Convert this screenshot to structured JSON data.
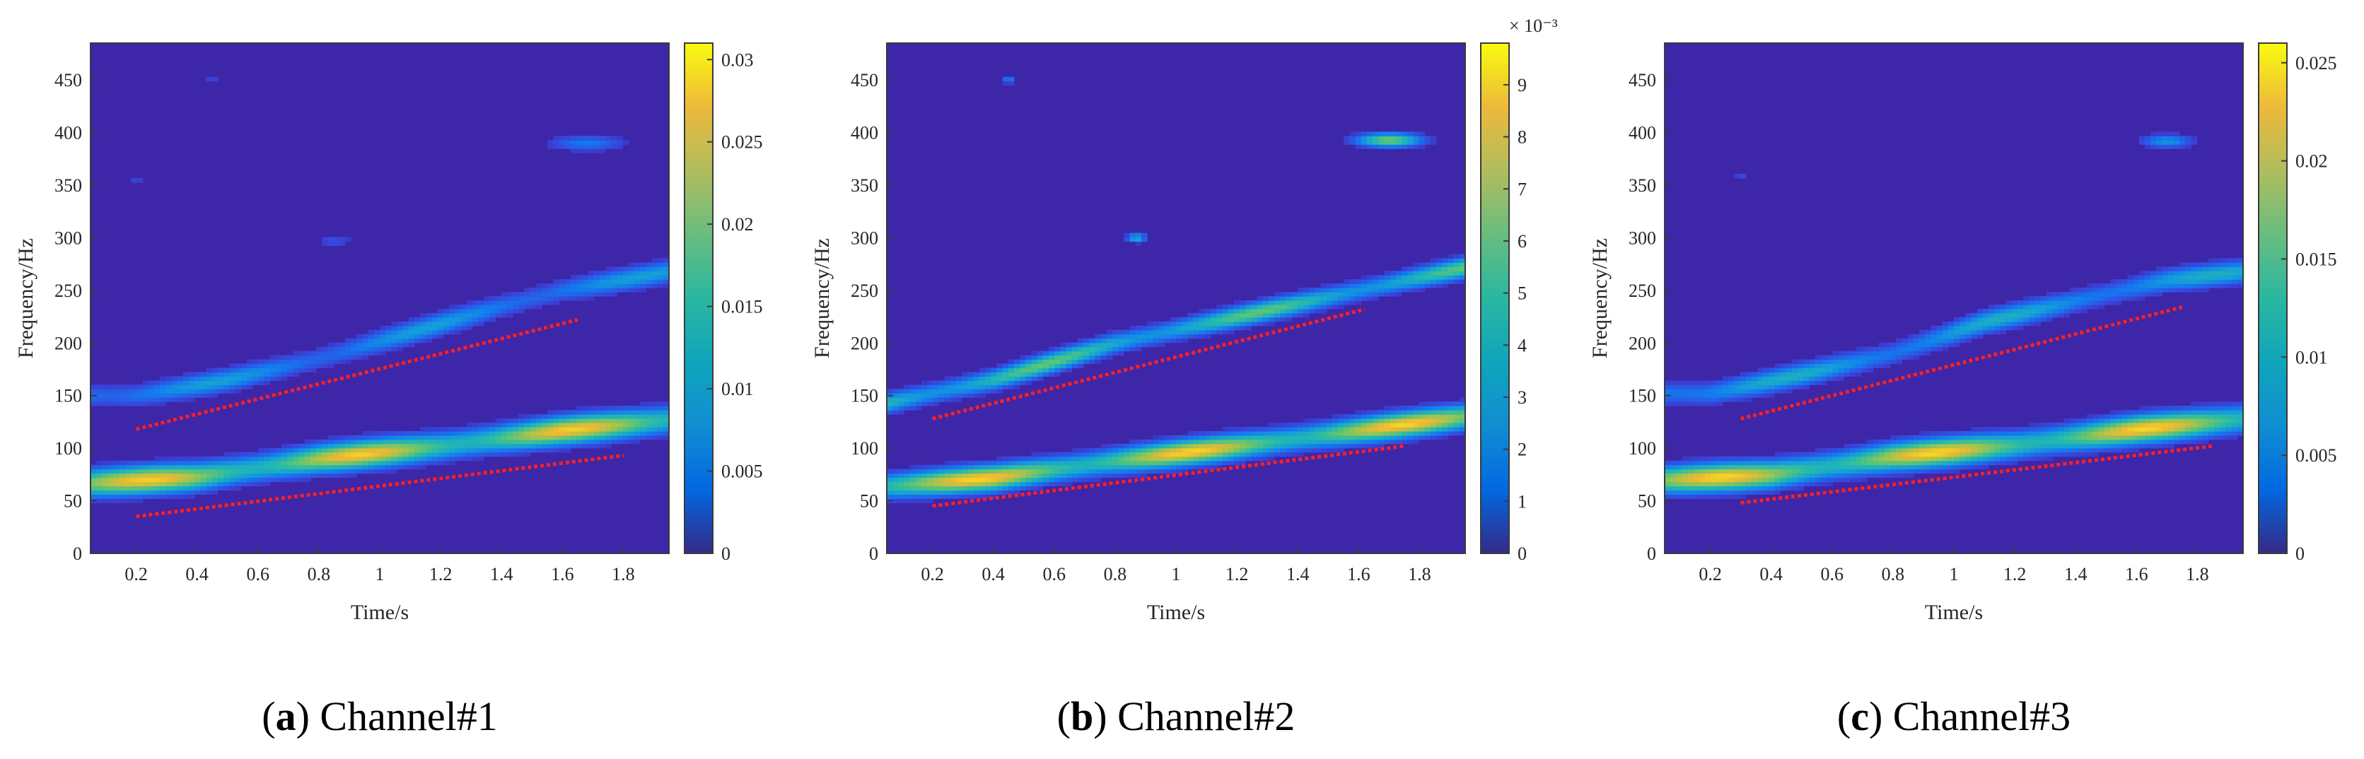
{
  "panels": [
    {
      "type": "heatmap",
      "caption_letter": "a",
      "caption_rest": "Channel#1",
      "xlabel": "Time/s",
      "ylabel": "Frequency/Hz",
      "xlim": [
        0.05,
        1.95
      ],
      "ylim": [
        0,
        485
      ],
      "xticks": [
        0.2,
        0.4,
        0.6,
        0.8,
        1,
        1.2,
        1.4,
        1.6,
        1.8
      ],
      "xtick_labels": [
        "0.2",
        "0.4",
        "0.6",
        "0.8",
        "1",
        "1.2",
        "1.4",
        "1.6",
        "1.8"
      ],
      "yticks": [
        0,
        50,
        100,
        150,
        200,
        250,
        300,
        350,
        400,
        450
      ],
      "ytick_labels": [
        "0",
        "50",
        "100",
        "150",
        "200",
        "250",
        "300",
        "350",
        "400",
        "450"
      ],
      "colorbar": {
        "range": [
          0,
          0.031
        ],
        "ticks": [
          0,
          0.005,
          0.01,
          0.015,
          0.02,
          0.025,
          0.03
        ],
        "tick_labels": [
          "0",
          "0.005",
          "0.01",
          "0.015",
          "0.02",
          "0.025",
          "0.03"
        ],
        "exponent": ""
      },
      "ridges": [
        {
          "t": [
            0.05,
            0.4,
            0.8,
            1.2,
            1.6,
            1.95
          ],
          "f": [
            67,
            73,
            90,
            102,
            117,
            127
          ],
          "peak": 0.028,
          "width": 12
        },
        {
          "t": [
            0.2,
            0.5,
            0.8,
            1.1,
            1.4,
            1.6,
            1.95
          ],
          "f": [
            150,
            165,
            185,
            210,
            235,
            250,
            268
          ],
          "peak": 0.011,
          "width": 10
        }
      ],
      "blobs": [
        {
          "t": 1.68,
          "f": 390,
          "dt": 0.12,
          "df": 7,
          "v": 0.007
        },
        {
          "t": 0.85,
          "f": 297,
          "dt": 0.06,
          "df": 5,
          "v": 0.004
        },
        {
          "t": 0.45,
          "f": 450,
          "dt": 0.04,
          "df": 4,
          "v": 0.003
        },
        {
          "t": 0.2,
          "f": 355,
          "dt": 0.03,
          "df": 4,
          "v": 0.003
        }
      ],
      "fitted_lines": [
        {
          "t": [
            0.2,
            1.65
          ],
          "f": [
            118,
            222
          ]
        },
        {
          "t": [
            0.2,
            1.8
          ],
          "f": [
            35,
            93
          ]
        }
      ]
    },
    {
      "type": "heatmap",
      "caption_letter": "b",
      "caption_rest": "Channel#2",
      "xlabel": "Time/s",
      "ylabel": "Frequency/Hz",
      "xlim": [
        0.05,
        1.95
      ],
      "ylim": [
        0,
        485
      ],
      "xticks": [
        0.2,
        0.4,
        0.6,
        0.8,
        1,
        1.2,
        1.4,
        1.6,
        1.8
      ],
      "xtick_labels": [
        "0.2",
        "0.4",
        "0.6",
        "0.8",
        "1",
        "1.2",
        "1.4",
        "1.6",
        "1.8"
      ],
      "yticks": [
        0,
        50,
        100,
        150,
        200,
        250,
        300,
        350,
        400,
        450
      ],
      "ytick_labels": [
        "0",
        "50",
        "100",
        "150",
        "200",
        "250",
        "300",
        "350",
        "400",
        "450"
      ],
      "colorbar": {
        "range": [
          0,
          9.8
        ],
        "ticks": [
          0,
          1,
          2,
          3,
          4,
          5,
          6,
          7,
          8,
          9
        ],
        "tick_labels": [
          "0",
          "1",
          "2",
          "3",
          "4",
          "5",
          "6",
          "7",
          "8",
          "9"
        ],
        "exponent": "× 10⁻³"
      },
      "ridges": [
        {
          "t": [
            0.05,
            0.4,
            0.8,
            1.2,
            1.6,
            1.95
          ],
          "f": [
            64,
            72,
            88,
            102,
            117,
            130
          ],
          "peak": 9.0,
          "width": 11
        },
        {
          "t": [
            0.05,
            0.4,
            0.8,
            1.2,
            1.6,
            1.95
          ],
          "f": [
            143,
            165,
            200,
            225,
            250,
            272
          ],
          "peak": 6.0,
          "width": 9
        }
      ],
      "blobs": [
        {
          "t": 1.7,
          "f": 393,
          "dt": 0.1,
          "df": 6,
          "v": 6.5
        },
        {
          "t": 0.87,
          "f": 300,
          "dt": 0.03,
          "df": 4,
          "v": 4.0
        },
        {
          "t": 0.45,
          "f": 450,
          "dt": 0.02,
          "df": 3,
          "v": 2.5
        }
      ],
      "fitted_lines": [
        {
          "t": [
            0.2,
            1.62
          ],
          "f": [
            128,
            232
          ]
        },
        {
          "t": [
            0.2,
            1.75
          ],
          "f": [
            45,
            102
          ]
        }
      ]
    },
    {
      "type": "heatmap",
      "caption_letter": "c",
      "caption_rest": "Channel#3",
      "xlabel": "Time/s",
      "ylabel": "Frequency/Hz",
      "xlim": [
        0.05,
        1.95
      ],
      "ylim": [
        0,
        485
      ],
      "xticks": [
        0.2,
        0.4,
        0.6,
        0.8,
        1,
        1.2,
        1.4,
        1.6,
        1.8
      ],
      "xtick_labels": [
        "0.2",
        "0.4",
        "0.6",
        "0.8",
        "1",
        "1.2",
        "1.4",
        "1.6",
        "1.8"
      ],
      "yticks": [
        0,
        50,
        100,
        150,
        200,
        250,
        300,
        350,
        400,
        450
      ],
      "ytick_labels": [
        "0",
        "50",
        "100",
        "150",
        "200",
        "250",
        "300",
        "350",
        "400",
        "450"
      ],
      "colorbar": {
        "range": [
          0,
          0.026
        ],
        "ticks": [
          0,
          0.005,
          0.01,
          0.015,
          0.02,
          0.025
        ],
        "tick_labels": [
          "0",
          "0.005",
          "0.01",
          "0.015",
          "0.02",
          "0.025"
        ],
        "exponent": ""
      },
      "ridges": [
        {
          "t": [
            0.05,
            0.4,
            0.8,
            1.2,
            1.6,
            1.95
          ],
          "f": [
            70,
            75,
            92,
            103,
            118,
            128
          ],
          "peak": 0.024,
          "width": 12
        },
        {
          "t": [
            0.2,
            0.5,
            0.8,
            1.1,
            1.4,
            1.7,
            1.95
          ],
          "f": [
            152,
            170,
            190,
            220,
            240,
            260,
            268
          ],
          "peak": 0.011,
          "width": 10
        }
      ],
      "blobs": [
        {
          "t": 1.7,
          "f": 392,
          "dt": 0.08,
          "df": 6,
          "v": 0.008
        },
        {
          "t": 0.3,
          "f": 358,
          "dt": 0.02,
          "df": 3,
          "v": 0.003
        }
      ],
      "fitted_lines": [
        {
          "t": [
            0.3,
            1.75
          ],
          "f": [
            128,
            234
          ]
        },
        {
          "t": [
            0.3,
            1.85
          ],
          "f": [
            48,
            102
          ]
        }
      ]
    }
  ],
  "chart_data": [
    {
      "type": "heatmap",
      "title": "",
      "caption": "(a) Channel#1",
      "xlabel": "Time/s",
      "ylabel": "Frequency/Hz",
      "xlim": [
        0.05,
        1.95
      ],
      "ylim": [
        0,
        485
      ],
      "colorbar_range": [
        0,
        0.031
      ],
      "series": [
        {
          "t": [
            0.05,
            0.4,
            0.8,
            1.2,
            1.6,
            1.95
          ],
          "f": [
            67,
            73,
            90,
            102,
            117,
            127
          ]
        },
        {
          "t": [
            0.2,
            0.5,
            0.8,
            1.1,
            1.4,
            1.6,
            1.95
          ],
          "f": [
            150,
            165,
            185,
            210,
            235,
            250,
            268
          ]
        }
      ],
      "fitted_lines": [
        {
          "t": [
            0.2,
            1.65
          ],
          "f": [
            118,
            222
          ]
        },
        {
          "t": [
            0.2,
            1.8
          ],
          "f": [
            35,
            93
          ]
        }
      ]
    },
    {
      "type": "heatmap",
      "title": "",
      "caption": "(b) Channel#2",
      "xlabel": "Time/s",
      "ylabel": "Frequency/Hz",
      "xlim": [
        0.05,
        1.95
      ],
      "ylim": [
        0,
        485
      ],
      "colorbar_range": [
        0,
        0.0098
      ],
      "colorbar_exponent": "× 10⁻³",
      "series": [
        {
          "t": [
            0.05,
            0.4,
            0.8,
            1.2,
            1.6,
            1.95
          ],
          "f": [
            64,
            72,
            88,
            102,
            117,
            130
          ]
        },
        {
          "t": [
            0.05,
            0.4,
            0.8,
            1.2,
            1.6,
            1.95
          ],
          "f": [
            143,
            165,
            200,
            225,
            250,
            272
          ]
        }
      ],
      "fitted_lines": [
        {
          "t": [
            0.2,
            1.62
          ],
          "f": [
            128,
            232
          ]
        },
        {
          "t": [
            0.2,
            1.75
          ],
          "f": [
            45,
            102
          ]
        }
      ]
    },
    {
      "type": "heatmap",
      "title": "",
      "caption": "(c) Channel#3",
      "xlabel": "Time/s",
      "ylabel": "Frequency/Hz",
      "xlim": [
        0.05,
        1.95
      ],
      "ylim": [
        0,
        485
      ],
      "colorbar_range": [
        0,
        0.026
      ],
      "series": [
        {
          "t": [
            0.05,
            0.4,
            0.8,
            1.2,
            1.6,
            1.95
          ],
          "f": [
            70,
            75,
            92,
            103,
            118,
            128
          ]
        },
        {
          "t": [
            0.2,
            0.5,
            0.8,
            1.1,
            1.4,
            1.7,
            1.95
          ],
          "f": [
            152,
            170,
            190,
            220,
            240,
            260,
            268
          ]
        }
      ],
      "fitted_lines": [
        {
          "t": [
            0.3,
            1.75
          ],
          "f": [
            128,
            234
          ]
        },
        {
          "t": [
            0.3,
            1.85
          ],
          "f": [
            48,
            102
          ]
        }
      ]
    }
  ]
}
